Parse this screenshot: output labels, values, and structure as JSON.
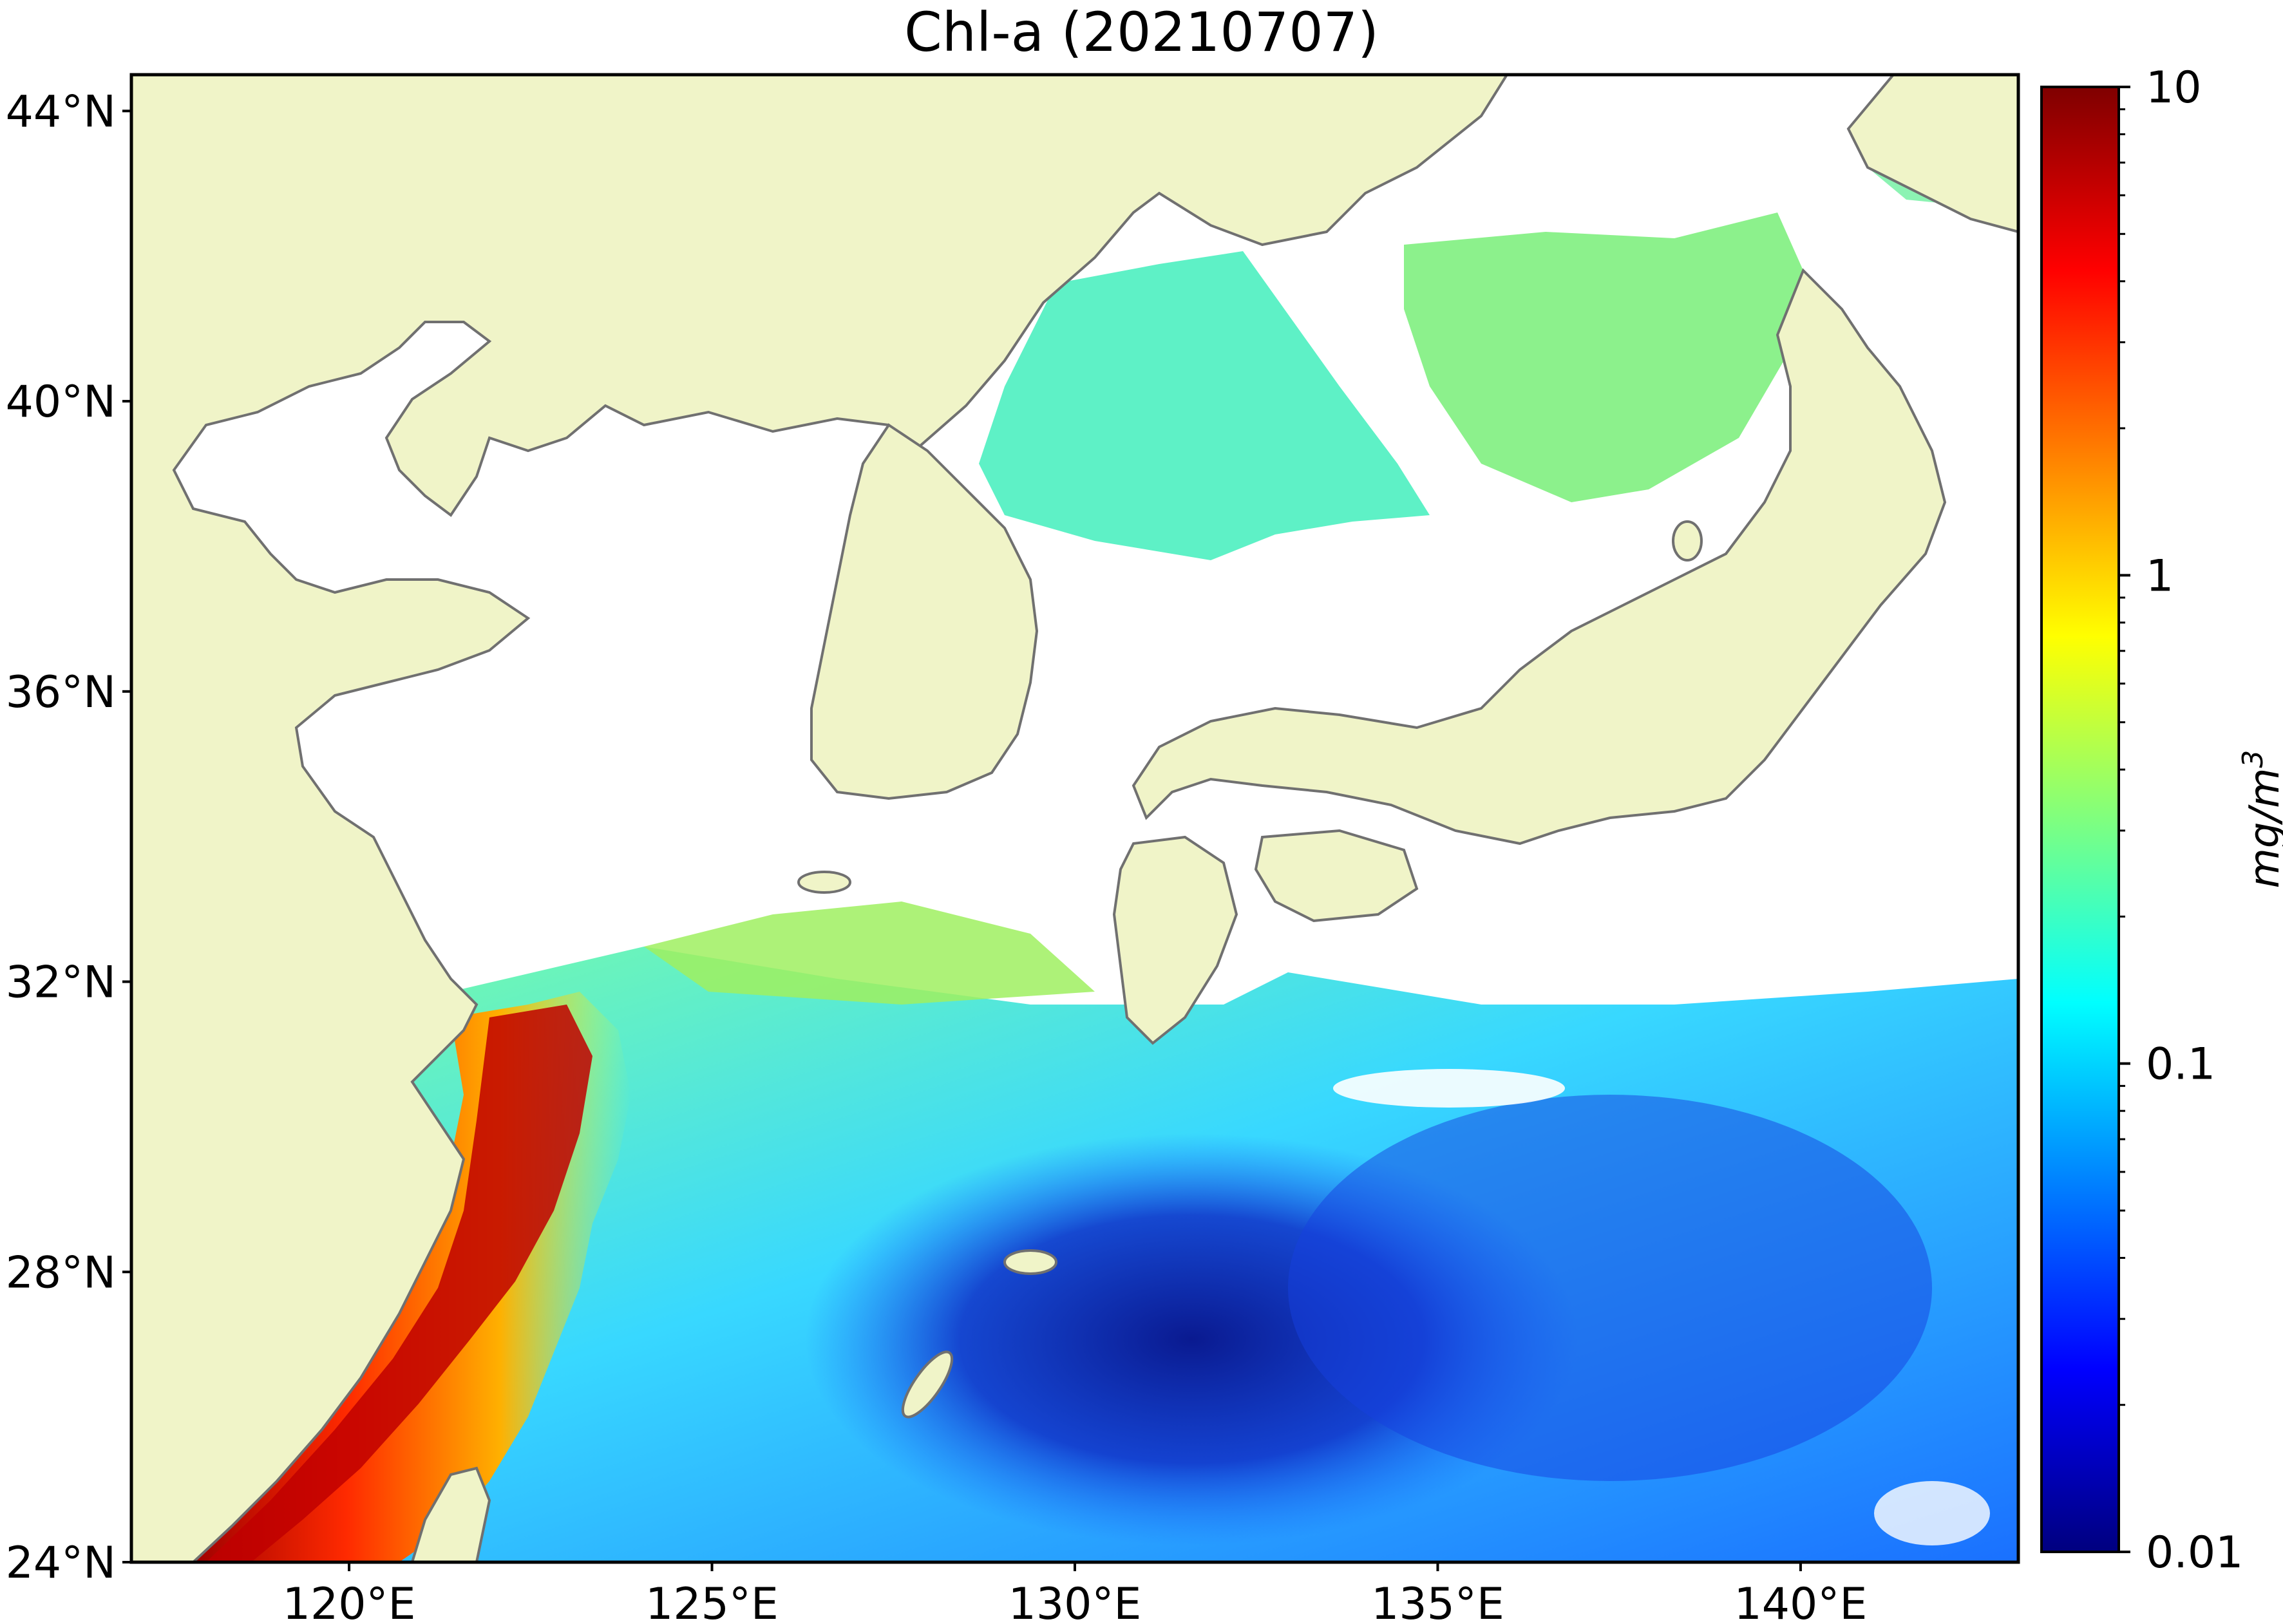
{
  "title": "Chl-a (20210707)",
  "map": {
    "land_color": "#f0f4c8",
    "no_data_color": "#ffffff",
    "coast_color": "#707070",
    "lat_ticks": [
      "44°N",
      "40°N",
      "36°N",
      "32°N",
      "28°N",
      "24°N"
    ],
    "lon_ticks": [
      "120°E",
      "125°E",
      "130°E",
      "135°E",
      "140°E"
    ],
    "lat_values": [
      44,
      40,
      36,
      32,
      28,
      24
    ],
    "lon_values": [
      120,
      125,
      130,
      135,
      140
    ],
    "extent": {
      "lon_min": 117,
      "lon_max": 143,
      "lat_min": 24,
      "lat_max": 44.5
    }
  },
  "colorbar": {
    "ticks": [
      "10",
      "1",
      "0.1",
      "0.01"
    ],
    "unit": "mg/m",
    "unit_sup": "3",
    "scale": "log",
    "range": [
      0.01,
      10
    ],
    "colormap": [
      "#00007f",
      "#0000ff",
      "#007fff",
      "#00ffff",
      "#7fff7f",
      "#ffff00",
      "#ff7f00",
      "#ff0000",
      "#7f0000"
    ]
  }
}
